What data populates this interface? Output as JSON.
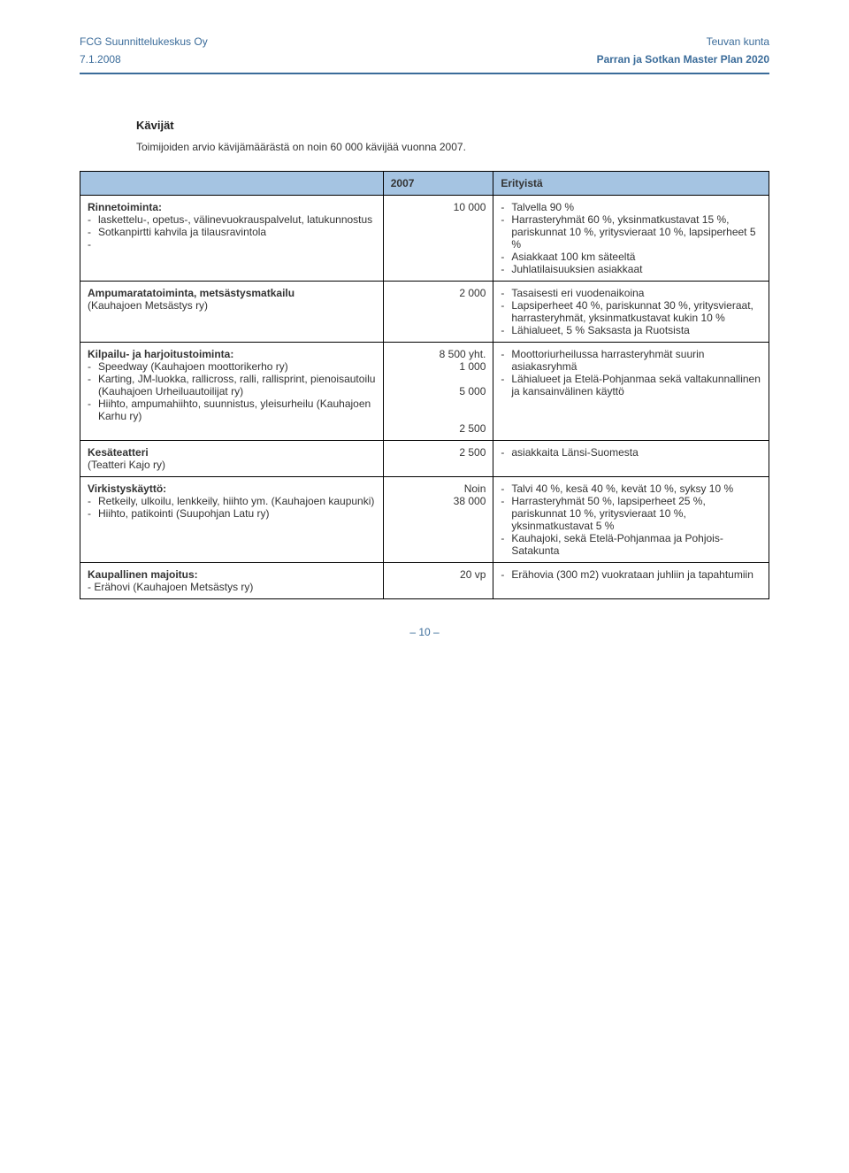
{
  "header": {
    "company": "FCG Suunnittelukeskus Oy",
    "client": "Teuvan kunta",
    "date": "7.1.2008",
    "project": "Parran ja Sotkan Master Plan 2020"
  },
  "section": {
    "title": "Kävijät",
    "intro": "Toimijoiden arvio kävijämäärästä on noin 60 000 kävijää vuonna 2007."
  },
  "table": {
    "head": {
      "col1": "",
      "col2": "2007",
      "col3": "Erityistä"
    },
    "rows": [
      {
        "title": "Rinnetoiminta:",
        "left_items": [
          "laskettelu-, opetus-, välinevuokrauspalvelut, latukunnostus",
          "Sotkanpirtti kahvila ja tilausravintola",
          ""
        ],
        "num": "10 000",
        "right_items": [
          "Talvella 90 %",
          "Harrasteryhmät 60 %, yksinmatkustavat 15 %, pariskunnat 10 %, yritysvieraat 10 %, lapsiperheet 5 %",
          "Asiakkaat 100 km säteeltä",
          "Juhlatilaisuuksien asiakkaat"
        ]
      },
      {
        "title": "Ampumaratatoiminta, metsästysmatkailu",
        "left_plain": "(Kauhajoen Metsästys ry)",
        "num": "2 000",
        "right_items": [
          "Tasaisesti eri vuodenaikoina",
          "Lapsiperheet 40 %, pariskunnat 30 %, yritysvieraat, harrasteryhmät, yksinmatkustavat kukin 10 %",
          "Lähialueet, 5 % Saksasta ja Ruotsista"
        ]
      },
      {
        "title": "Kilpailu- ja harjoitustoiminta:",
        "left_items": [
          "Speedway (Kauhajoen moottorikerho ry)",
          "Karting, JM-luokka, rallicross, ralli, rallisprint, pienoisautoilu (Kauhajoen Urheiluautoilijat ry)",
          "Hiihto, ampumahiihto, suunnistus, yleisurheilu (Kauhajoen Karhu ry)"
        ],
        "num": "8 500 yht.\n1 000\n\n5 000\n\n\n2 500",
        "right_items": [
          "Moottoriurheilussa harrasteryhmät suurin asiakasryhmä",
          "Lähialueet ja Etelä-Pohjanmaa sekä valtakunnallinen ja kansainvälinen käyttö"
        ]
      },
      {
        "title": "Kesäteatteri",
        "left_plain": "(Teatteri Kajo ry)",
        "num": "2 500",
        "right_items": [
          "asiakkaita Länsi-Suomesta"
        ]
      },
      {
        "title": "Virkistyskäyttö:",
        "left_items": [
          "Retkeily, ulkoilu, lenkkeily, hiihto ym. (Kauhajoen kaupunki)",
          "Hiihto, patikointi (Suupohjan Latu ry)"
        ],
        "num": "Noin\n38 000",
        "right_items": [
          "Talvi 40 %, kesä 40 %, kevät 10 %, syksy 10 %",
          "Harrasteryhmät 50 %, lapsiperheet 25 %, pariskunnat 10 %, yritysvieraat 10 %, yksinmatkustavat 5 %",
          "Kauhajoki, sekä Etelä-Pohjanmaa ja Pohjois-Satakunta"
        ]
      },
      {
        "title": "Kaupallinen majoitus:",
        "left_plain": "- Erähovi (Kauhajoen Metsästys ry)",
        "num": "20 vp",
        "right_items": [
          "Erähovia (300 m2) vuokra­taan juhliin ja tapahtumiin"
        ]
      }
    ]
  },
  "footer": {
    "pagenum": "– 10 –"
  }
}
